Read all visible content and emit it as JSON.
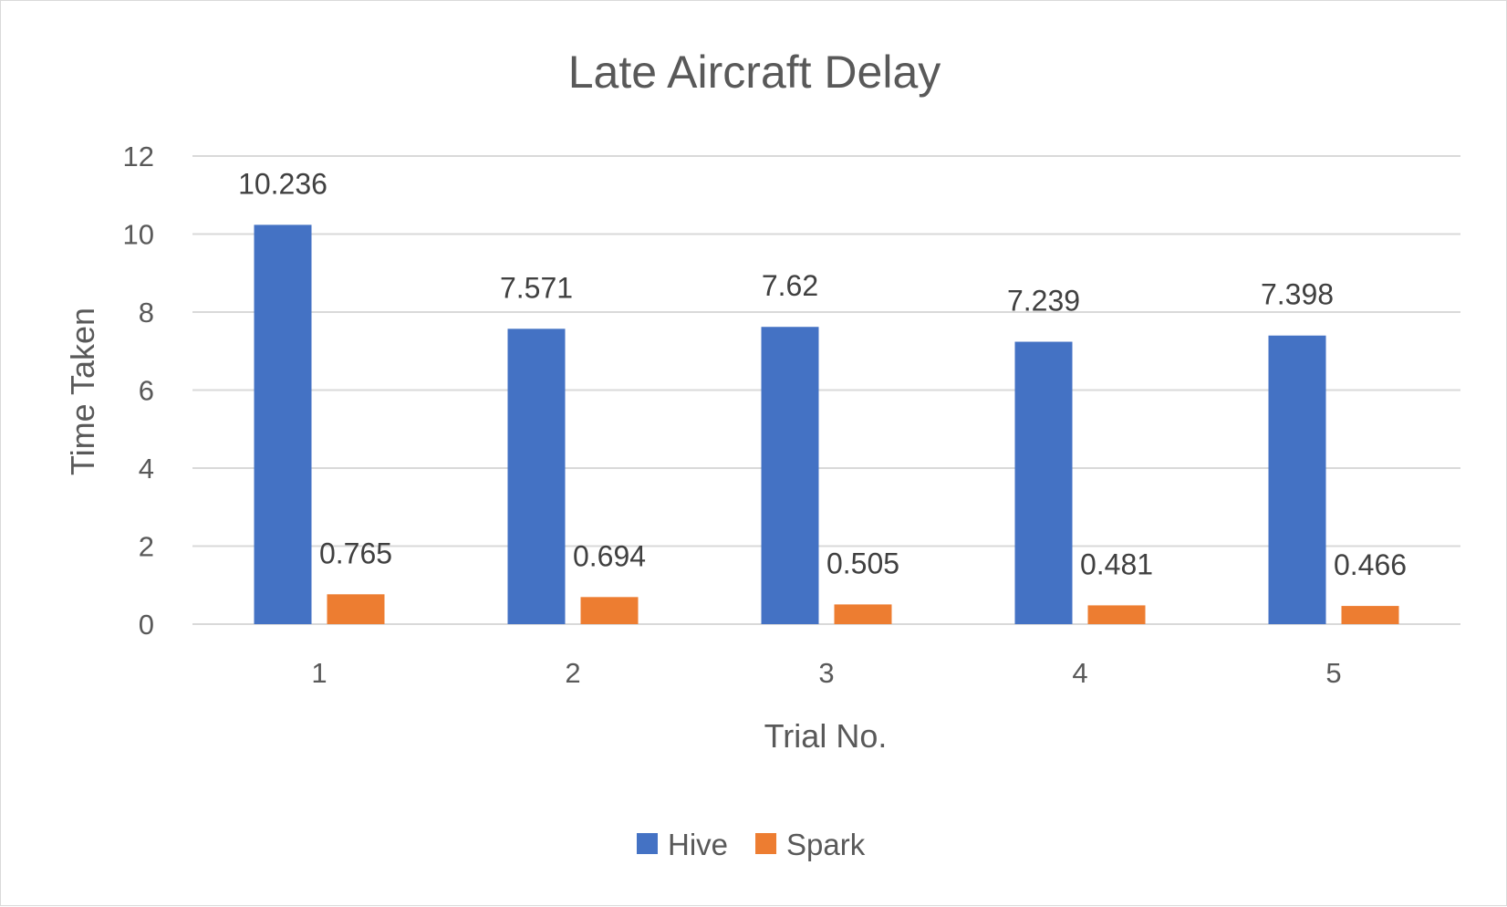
{
  "chart_data": {
    "type": "bar",
    "title": "Late Aircraft Delay",
    "xlabel": "Trial No.",
    "ylabel": "Time Taken",
    "categories": [
      "1",
      "2",
      "3",
      "4",
      "5"
    ],
    "series": [
      {
        "name": "Hive",
        "color": "#4472c4",
        "values": [
          10.236,
          7.571,
          7.62,
          7.239,
          7.398
        ]
      },
      {
        "name": "Spark",
        "color": "#ed7d31",
        "values": [
          0.765,
          0.694,
          0.505,
          0.481,
          0.466
        ]
      }
    ],
    "ylim": [
      0,
      12
    ],
    "yticks": [
      "0",
      "2",
      "4",
      "6",
      "8",
      "10",
      "12"
    ],
    "grid": true,
    "legend_position": "bottom"
  }
}
